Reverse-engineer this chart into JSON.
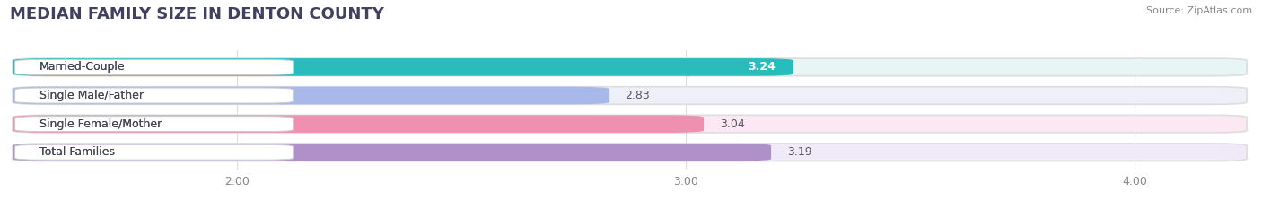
{
  "title": "MEDIAN FAMILY SIZE IN DENTON COUNTY",
  "source": "Source: ZipAtlas.com",
  "categories": [
    "Married-Couple",
    "Single Male/Father",
    "Single Female/Mother",
    "Total Families"
  ],
  "values": [
    3.24,
    2.83,
    3.04,
    3.19
  ],
  "bar_colors": [
    "#29bcbc",
    "#a8b8e8",
    "#f090b0",
    "#b090c8"
  ],
  "bar_bg_colors": [
    "#e8f5f5",
    "#edf0f8",
    "#fce8f2",
    "#f0eaf8"
  ],
  "label_bg_color": "#ffffff",
  "value_colors": [
    "#ffffff",
    "#777777",
    "#777777",
    "#777777"
  ],
  "xlim": [
    1.5,
    4.25
  ],
  "xmin": 1.5,
  "xmax": 4.25,
  "xticks": [
    2.0,
    3.0,
    4.0
  ],
  "xtick_labels": [
    "2.00",
    "3.00",
    "4.00"
  ],
  "title_fontsize": 13,
  "label_fontsize": 9,
  "value_fontsize": 9,
  "bar_height": 0.62,
  "background_color": "#ffffff",
  "grid_color": "#dddddd",
  "title_color": "#404060"
}
